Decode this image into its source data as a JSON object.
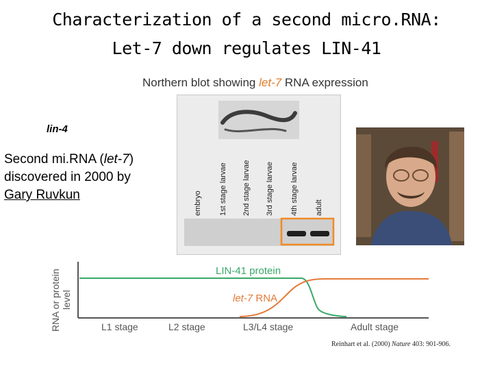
{
  "title": {
    "line1": "Characterization of a second micro.RNA:",
    "line2": "Let-7 down regulates LIN-41"
  },
  "left_text": {
    "lin4": "lin-4",
    "second_prefix": "Second mi.RNA (",
    "second_gene": "let-7",
    "second_suffix": ")",
    "discovered": " discovered in 2000 by",
    "person": "Gary Ruvkun"
  },
  "blot": {
    "caption_pre": "Northern blot showing ",
    "caption_gene": "let-7",
    "caption_post": " RNA expression",
    "lanes": [
      "embryo",
      "1st stage larvae",
      "2nd stage larvae",
      "3rd stage larvae",
      "4th stage larvae",
      "adult"
    ],
    "band_lanes": [
      "4th stage larvae",
      "adult"
    ]
  },
  "graph": {
    "y_label_line1": "RNA or protein",
    "y_label_line2": "level",
    "protein_label": "LIN-41 protein",
    "rna_label_gene": "let-7",
    "rna_label_suffix": " RNA",
    "stages": [
      "L1 stage",
      "L2 stage",
      "L3/L4 stage",
      "Adult stage"
    ],
    "colors": {
      "protein": "#3aa86a",
      "rna": "#e37b3b",
      "axis": "#555555"
    }
  },
  "citation": {
    "authors": "Reinhart et al. (2000) ",
    "journal": "Nature",
    "ref": " 403: 901-906."
  }
}
